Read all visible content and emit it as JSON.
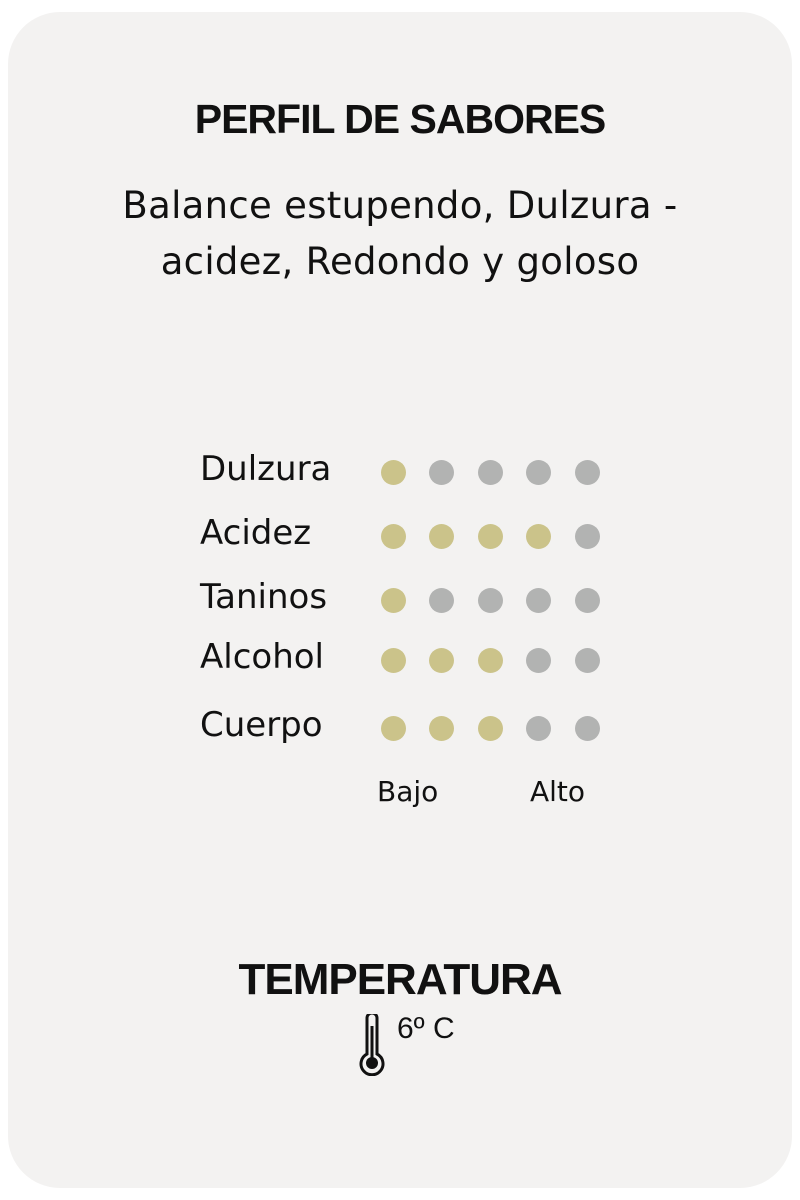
{
  "title": "PERFIL DE SABORES",
  "description": "Balance estupendo, Dulzura - acidez, Redondo y goloso",
  "profile": [
    {
      "label": "Dulzura",
      "level": 1,
      "max": 5
    },
    {
      "label": "Acidez",
      "level": 4,
      "max": 5
    },
    {
      "label": "Taninos",
      "level": 1,
      "max": 5
    },
    {
      "label": "Alcohol",
      "level": 3,
      "max": 5
    },
    {
      "label": "Cuerpo",
      "level": 3,
      "max": 5
    }
  ],
  "scale": {
    "low": "Bajo",
    "high": "Alto"
  },
  "temperature": {
    "title": "TEMPERATURA",
    "value": "6º C",
    "icon": "thermometer-icon"
  },
  "colors": {
    "filled": "#cbc38a",
    "empty": "#b2b3b2",
    "background": "#f3f2f1"
  }
}
